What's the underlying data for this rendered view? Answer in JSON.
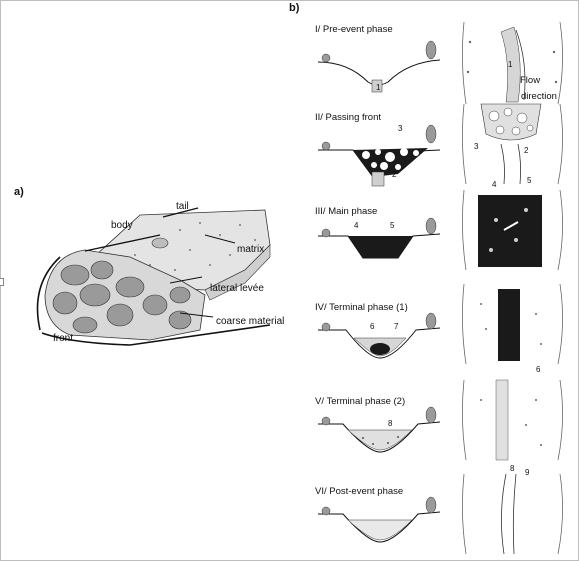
{
  "panels": {
    "a": "a)",
    "b": "b)"
  },
  "panel_a": {
    "labels": {
      "tail": "tail",
      "body": "body",
      "matrix": "matrix",
      "lateral_levee": "lateral levée",
      "coarse_material": "coarse material",
      "front": "front"
    }
  },
  "panel_b": {
    "phases": [
      {
        "title": "I/  Pre-event phase",
        "cross_numbers": [
          "1"
        ],
        "plan_numbers": [
          "1"
        ],
        "extra": [
          "Flow",
          "direction"
        ]
      },
      {
        "title": "II/  Passing front",
        "cross_numbers": [
          "3",
          "2"
        ],
        "plan_numbers": [
          "3",
          "2"
        ]
      },
      {
        "title": "III/  Main phase",
        "cross_numbers": [
          "4",
          "5"
        ],
        "plan_numbers": [
          "4",
          "5"
        ]
      },
      {
        "title": "IV/  Terminal phase (1)",
        "cross_numbers": [
          "6",
          "7"
        ],
        "plan_numbers": [
          "6"
        ]
      },
      {
        "title": "V/  Terminal phase (2)",
        "cross_numbers": [
          "8"
        ],
        "plan_numbers": []
      },
      {
        "title": "VI/  Post-event phase",
        "cross_numbers": [],
        "plan_numbers": [
          "8",
          "9"
        ]
      }
    ]
  },
  "colors": {
    "ink": "#111111",
    "shade": "#9a9a9a",
    "light": "#d6d6d6",
    "dark": "#1a1a1a"
  }
}
